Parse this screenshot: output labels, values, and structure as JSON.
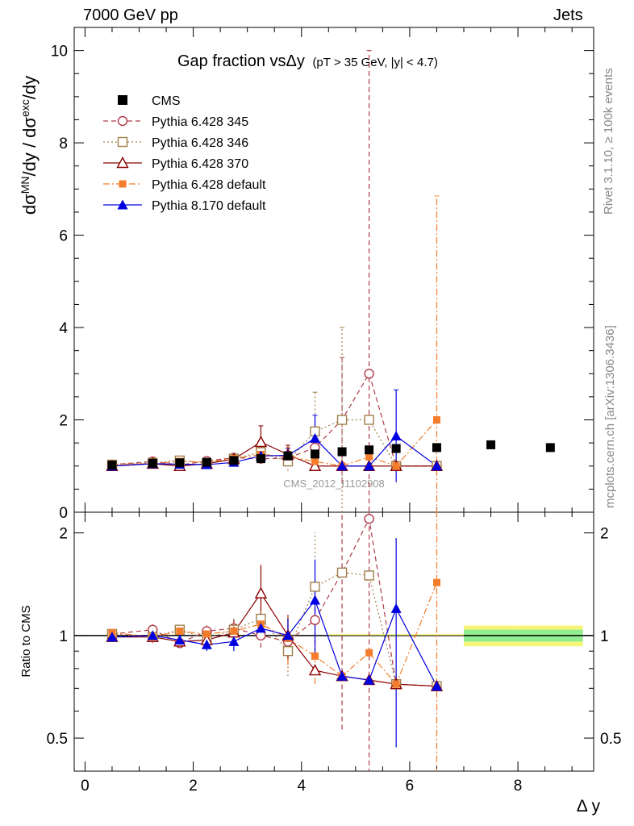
{
  "header": {
    "left": "7000 GeV pp",
    "right": "Jets"
  },
  "side_labels": {
    "rivet": "Rivet 3.1.10, ≥ 100k events",
    "mcplots": "mcplots.cern.ch [arXiv:1306.3436]"
  },
  "colors": {
    "cms": "#000000",
    "p345": "#b03a48",
    "p346": "#a0804a",
    "p370": "#8b0000",
    "p6def": "#f57c2a",
    "p8": "#0000e0",
    "band_outer": "#f5f57a",
    "band_inner": "#90ee90"
  },
  "chart_data": {
    "type": "scatter",
    "title": "Gap fraction vsΔy (p_T > 35 GeV, |y| < 4.7)",
    "title_main": "Gap fraction vsΔy",
    "title_cut": "(pT > 35 GeV, |y| < 4.7)",
    "xlabel": "Δ y",
    "ylabel_main": "dσMN/dy / dσexc/dy",
    "ylabel_ratio": "Ratio to CMS",
    "watermark": "CMS_2012_I1102908",
    "xlim": [
      -0.2,
      9.4
    ],
    "xticks": [
      0,
      2,
      4,
      6,
      8
    ],
    "main_ylim": [
      0,
      10.5
    ],
    "main_yticks": [
      0,
      2,
      4,
      6,
      8,
      10
    ],
    "ratio_ylim": [
      0.4,
      2.3
    ],
    "ratio_ylog": true,
    "ratio_yticks": [
      0.5,
      1,
      2
    ],
    "grid": false,
    "legend": "top-left",
    "x": [
      0.5,
      1.25,
      1.75,
      2.25,
      2.75,
      3.25,
      3.75,
      4.25,
      4.75,
      5.25,
      5.75,
      6.5
    ],
    "data_series": {
      "name": "CMS",
      "x": [
        0.5,
        1.25,
        1.75,
        2.25,
        2.75,
        3.25,
        3.75,
        4.25,
        4.75,
        5.25,
        5.75,
        6.5,
        7.5,
        8.6
      ],
      "values": [
        1.02,
        1.06,
        1.07,
        1.08,
        1.12,
        1.16,
        1.22,
        1.26,
        1.31,
        1.35,
        1.38,
        1.4,
        1.46,
        1.4
      ],
      "band_x_edges": [
        7.0,
        8.0,
        9.2
      ],
      "band_outer": [
        1.07,
        1.07
      ],
      "band_inner": [
        1.04,
        1.04
      ]
    },
    "series": [
      {
        "key": "p345",
        "name": "Pythia 6.428 345",
        "dash": "6,4",
        "marker": "circle-open",
        "values": [
          1.03,
          1.1,
          1.02,
          1.11,
          1.18,
          1.16,
          1.17,
          1.4,
          2.0,
          3.0,
          1.0,
          1.0
        ],
        "err": [
          0.03,
          0.05,
          0.03,
          0.06,
          0.08,
          0.1,
          0.15,
          0.3,
          1.35,
          7.0,
          0,
          0
        ],
        "ratio": [
          1.01,
          1.04,
          0.95,
          1.03,
          1.05,
          1.0,
          0.96,
          1.11,
          1.53,
          2.2,
          0.72,
          0.71
        ],
        "ratio_err": [
          0.03,
          0.05,
          0.03,
          0.05,
          0.07,
          0.08,
          0.12,
          0.22,
          1.0,
          3.0,
          0,
          0
        ]
      },
      {
        "key": "p346",
        "name": "Pythia 6.428 346",
        "dash": "2,3",
        "marker": "square-open",
        "values": [
          1.03,
          1.07,
          1.12,
          1.06,
          1.16,
          1.3,
          1.1,
          1.75,
          2.0,
          2.0,
          1.0,
          1.0
        ],
        "err": [
          0.03,
          0.04,
          0.04,
          0.06,
          0.08,
          0.12,
          0.2,
          0.85,
          2.0,
          0,
          0,
          0
        ],
        "ratio": [
          1.01,
          0.99,
          1.04,
          0.98,
          1.04,
          1.12,
          0.9,
          1.39,
          1.53,
          1.5,
          0.72,
          0.71
        ],
        "ratio_err": [
          0.03,
          0.04,
          0.04,
          0.05,
          0.07,
          0.1,
          0.14,
          0.62,
          0,
          0,
          0,
          0
        ]
      },
      {
        "key": "p370",
        "name": "Pythia 6.428 370",
        "dash": "",
        "marker": "triangle-open",
        "values": [
          1.0,
          1.05,
          1.0,
          1.05,
          1.15,
          1.52,
          1.25,
          1.0,
          1.0,
          1.0,
          1.0,
          1.0
        ],
        "err": [
          0.03,
          0.04,
          0.04,
          0.06,
          0.1,
          0.35,
          0.2,
          0,
          0,
          0,
          0,
          0
        ],
        "ratio": [
          0.99,
          0.99,
          0.96,
          0.97,
          1.02,
          1.33,
          1.0,
          0.79,
          0.76,
          0.74,
          0.72,
          0.71
        ],
        "ratio_err": [
          0.03,
          0.04,
          0.03,
          0.05,
          0.08,
          0.28,
          0.15,
          0,
          0,
          0,
          0,
          0
        ]
      },
      {
        "key": "p6def",
        "name": "Pythia 6.428 default",
        "dash": "8,3,2,3",
        "marker": "square-filled",
        "values": [
          1.04,
          1.05,
          1.1,
          1.09,
          1.16,
          1.25,
          1.2,
          1.1,
          1.0,
          1.2,
          1.0,
          2.0
        ],
        "err": [
          0.03,
          0.04,
          0.05,
          0.06,
          0.08,
          0.12,
          0.2,
          0.2,
          0,
          0,
          0,
          4.85
        ],
        "ratio": [
          1.02,
          0.99,
          1.03,
          1.01,
          1.03,
          1.08,
          0.98,
          0.87,
          0.76,
          0.89,
          0.72,
          1.43
        ],
        "ratio_err": [
          0.03,
          0.04,
          0.04,
          0.05,
          0.07,
          0.1,
          0.16,
          0.15,
          0,
          0,
          0,
          3.5
        ]
      },
      {
        "key": "p8",
        "name": "Pythia 8.170 default",
        "dash": "",
        "marker": "triangle-filled",
        "values": [
          1.0,
          1.05,
          1.04,
          1.03,
          1.08,
          1.22,
          1.23,
          1.6,
          1.0,
          1.0,
          1.65,
          1.0
        ],
        "err": [
          0.03,
          0.04,
          0.04,
          0.05,
          0.07,
          0.1,
          0.15,
          0.5,
          0,
          0,
          1.0,
          0
        ],
        "ratio": [
          0.99,
          1.0,
          0.97,
          0.94,
          0.96,
          1.05,
          1.0,
          1.27,
          0.76,
          0.74,
          1.2,
          0.71
        ],
        "ratio_err": [
          0.03,
          0.04,
          0.04,
          0.04,
          0.06,
          0.08,
          0.12,
          0.4,
          0,
          0,
          0.73,
          0
        ]
      }
    ]
  }
}
